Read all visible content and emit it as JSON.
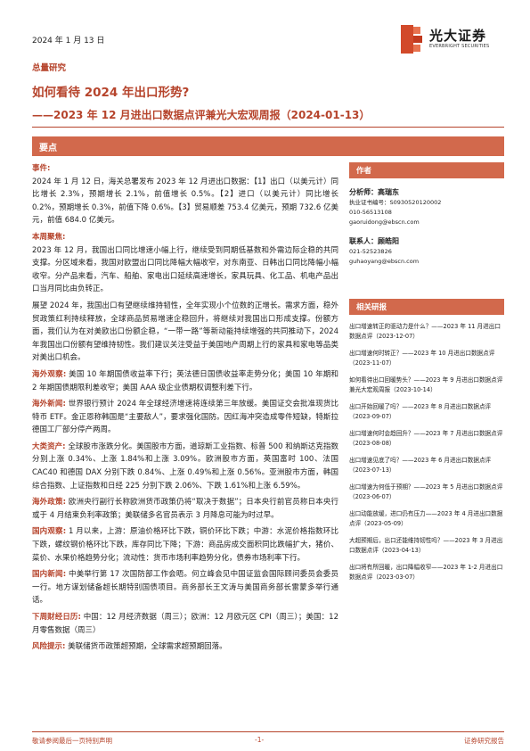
{
  "header": {
    "date": "2024 年 1 月 13 日",
    "logo_name": "光大证券",
    "logo_sub": "EVERBRIGHT SECURITIES",
    "category": "总量研究",
    "title": "如何看待 2024 年出口形势?",
    "subtitle": "——2023 年 12 月进出口数据点评兼光大宏观周报（2024-01-13）"
  },
  "highlights_label": "要点",
  "main": [
    {
      "label": "事件:",
      "text": ""
    },
    {
      "label": "",
      "text": "2024 年 1 月 12 日，海关总署发布 2023 年 12 月进出口数据：【1】出口（以美元计）同比增长 2.3%，预期增长 2.1%，前值增长 0.5%。【2】进口（以美元计）同比增长 0.2%，预期增长 0.3%，前值下降 0.6%。【3】贸易顺差 753.4 亿美元，预期 732.6 亿美元，前值 684.0 亿美元。"
    },
    {
      "label": "本周聚焦:",
      "text": ""
    },
    {
      "label": "",
      "text": "2023 年 12 月，我国出口同比增速小幅上行，继续受到同期低基数和外需边际企稳的共同支撑。分区域来看，我国对欧盟出口同比降幅大幅收窄，对东南亚、日韩出口同比降幅小幅收窄。分产品来看，汽车、船舶、家电出口延续高速增长，家具玩具、化工品、机电产品出口当月同比由负转正。"
    },
    {
      "label": "",
      "text": "展望 2024 年，我国出口有望继续维持韧性，全年实现小个位数的正增长。需求方面，稳外贸政策红利持续释放，全球商品贸易增速企稳回升，将继续对我国出口形成支撑。份额方面，我们认为在对美欧出口份额企稳，“一带一路”等新动能持续增强的共同推动下，2024 年我国出口份额有望维持韧性。我们建议关注受益于美国地产周期上行的家具和家电等品类对美出口机会。"
    },
    {
      "label": "海外观察:",
      "text": " 美国 10 年期国债收益率下行；英法德日国债收益率走势分化；美国 10 年期和 2 年期国债期限利差收窄；美国 AAA 级企业债期权调整利差下行。"
    },
    {
      "label": "海外新闻:",
      "text": " 世界银行预计 2024 年全球经济增速将连续第三年放缓。美国证交会批准现货比特币 ETF。金正恩称韩国是“主要敌人”，要求强化国防。因红海冲突造成零件短缺，特斯拉德国工厂部分停产两周。"
    },
    {
      "label": "大类资产:",
      "text": " 全球股市涨跌分化。美国股市方面，道琼斯工业指数、标普 500 和纳斯达克指数分别上涨 0.34%、上涨 1.84%和上涨 3.09%。欧洲股市方面，英国富时 100、法国 CAC40 和德国 DAX 分别下跌 0.84%、上涨 0.49%和上涨 0.56%。亚洲股市方面，韩国综合指数、上证指数和日经 225 分别下跌 2.06%、下跌 1.61%和上涨 6.59%。"
    },
    {
      "label": "海外政策:",
      "text": " 欧洲央行副行长称欧洲货币政策仍将“取决于数据”；日本央行前官员称日本央行或于 4 月结束负利率政策；美联储多名官员表示 3 月降息可能为时过早。"
    },
    {
      "label": "国内观察:",
      "text": " 1 月以来，上游：原油价格环比下跌，铜价环比下跌；中游：水泥价格指数环比下跌，螺纹钢价格环比下跌，库存同比下降；下游：商品房成交面积同比跌幅扩大，猪价、菜价、水果价格趋势分化；流动性：货币市场利率趋势分化，债券市场利率下行。"
    },
    {
      "label": "国内新闻:",
      "text": " 中美举行第 17 次国防部工作会晤。何立峰会见中国证监会国际顾问委员会委员一行。地方谋划储备超长期特别国债项目。商务部长王文涛与美国商务部长雷蒙多举行通话。"
    },
    {
      "label": "下周财经日历:",
      "text": " 中国：12 月经济数据（周三）；欧洲：12 月欧元区 CPI（周三）；美国：12 月零售数据（周三）"
    },
    {
      "label": "风险提示:",
      "text": " 美联储货币政策超预期，全球需求超预期回落。"
    }
  ],
  "sidebar": {
    "author_head": "作者",
    "analysts": [
      {
        "role_name": "分析师：高瑞东",
        "lines": [
          "执业证书编号：S0930520120002",
          "010-56513108",
          "gaoruidong@ebscn.com"
        ]
      },
      {
        "role_name": "联系人：顾皓阳",
        "lines": [
          "021-52523826",
          "guhaoyang@ebscn.com"
        ]
      }
    ],
    "reports_head": "相关研报",
    "reports": [
      "出口增速转正的驱动力是什么？——2023 年 11 月进出口数据点评（2023-12-07）",
      "出口增速何时转正？——2023 年 10 月进出口数据点评（2023-11-07）",
      "如何看待出口回暖势头？——2023 年 9 月进出口数据点评兼光大宏观周报（2023-10-14）",
      "出口开始回暖了吗？——2023 年 8 月进出口数据点评（2023-09-07）",
      "出口增速何时会趋回升？——2023 年 7 月进出口数据点评（2023-08-08）",
      "出口增速见底了吗？——2023 年 6 月进出口数据点评（2023-07-13）",
      "出口增速为何低于预期？——2023 年 5 月进出口数据点评（2023-06-07）",
      "出口动能放缓，进口仍有压力——2023 年 4 月进出口数据点评（2023-05-09）",
      "大超预期后，出口还能维持韧性吗？——2023 年 3 月进出口数据点评（2023-04-13）",
      "出口将有所回暖，出口降幅收窄——2023 年 1-2 月进出口数据点评（2023-03-07）"
    ]
  },
  "footer": {
    "left": "敬请参阅最后一页特别声明",
    "page": "-1-",
    "right": "证券研究报告"
  },
  "colors": {
    "accent": "#b6442c",
    "bar": "#d2694c"
  }
}
